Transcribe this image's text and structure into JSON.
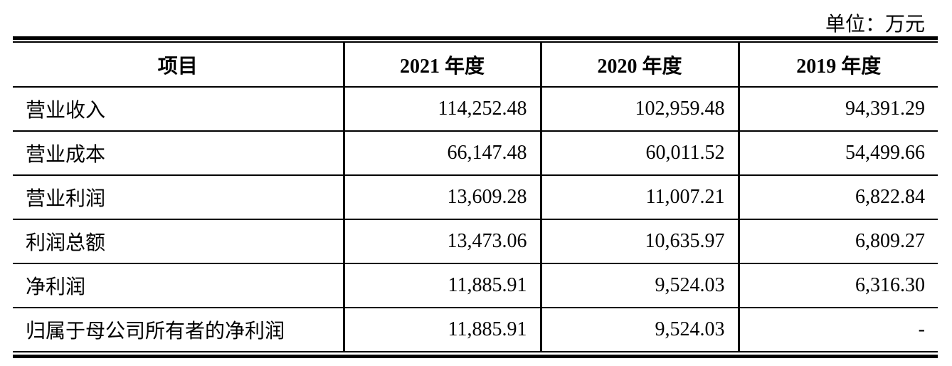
{
  "unit_label": "单位：万元",
  "table": {
    "headers": [
      "项目",
      "2021 年度",
      "2020 年度",
      "2019 年度"
    ],
    "rows": [
      [
        "营业收入",
        "114,252.48",
        "102,959.48",
        "94,391.29"
      ],
      [
        "营业成本",
        "66,147.48",
        "60,011.52",
        "54,499.66"
      ],
      [
        "营业利润",
        "13,609.28",
        "11,007.21",
        "6,822.84"
      ],
      [
        "利润总额",
        "13,473.06",
        "10,635.97",
        "6,809.27"
      ],
      [
        "净利润",
        "11,885.91",
        "9,524.03",
        "6,316.30"
      ],
      [
        "归属于母公司所有者的净利润",
        "11,885.91",
        "9,524.03",
        "-"
      ]
    ]
  }
}
